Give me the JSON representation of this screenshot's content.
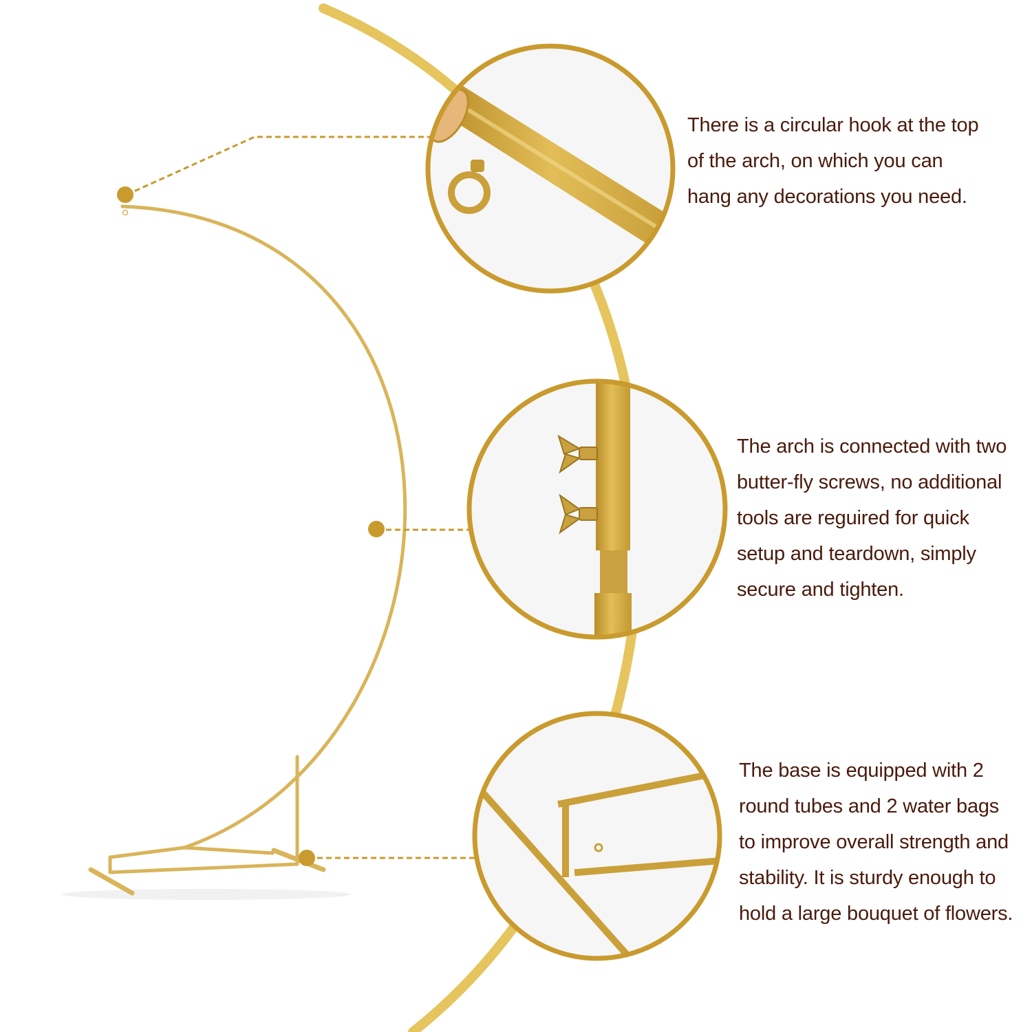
{
  "colors": {
    "gold": "#d4a73a",
    "gold_dark": "#b98d2a",
    "gold_light": "#e8c86a",
    "text": "#4a1a0c",
    "background": "#ffffff"
  },
  "callouts": [
    {
      "id": "hook",
      "detail": "circular-hook-closeup",
      "lines": [
        "There is a circular hook at the top",
        "of the arch, on which you can",
        "hang any decorations you need."
      ]
    },
    {
      "id": "screws",
      "detail": "butterfly-screws-closeup",
      "lines": [
        "The arch is connected with two",
        "butter-fly screws, no additional",
        "tools are reguired for quick",
        "setup and teardown, simply",
        "secure and tighten."
      ]
    },
    {
      "id": "base",
      "detail": "base-frame-closeup",
      "lines": [
        "The base is equipped with 2",
        "round tubes and 2 water bags",
        "to improve overall strength and",
        "stability. It is sturdy enough to",
        "hold a large bouquet of flowers."
      ]
    }
  ]
}
